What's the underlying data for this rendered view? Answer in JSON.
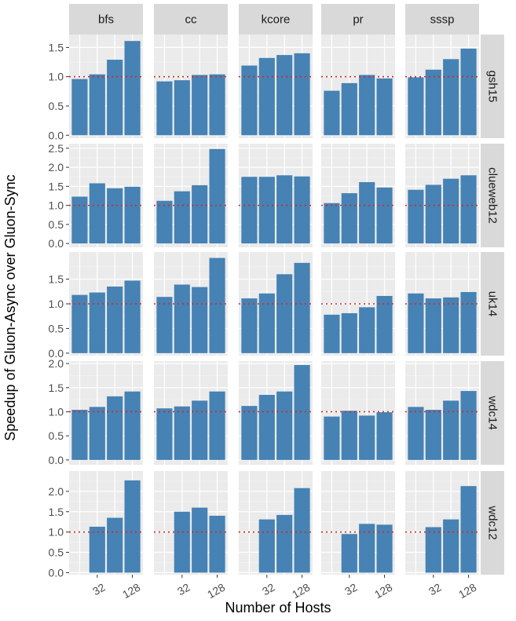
{
  "chart_data": {
    "type": "bar",
    "facet": "grid",
    "xlabel": "Number of Hosts",
    "ylabel": "Speedup of Gluon-Async over Gluon-Sync",
    "x_tick_labels": [
      "32",
      "128"
    ],
    "x_tick_category_indices": [
      1,
      3
    ],
    "hosts": [
      "16",
      "32",
      "64",
      "128"
    ],
    "reference_line": {
      "y": 1.0,
      "style": "dotted",
      "color": "#dd2222"
    },
    "bar_color": "#4682b4",
    "columns": [
      "bfs",
      "cc",
      "kcore",
      "pr",
      "sssp"
    ],
    "rows": [
      {
        "name": "gsh15",
        "ylim": [
          -0.05,
          1.72
        ],
        "y_ticks": [
          0.0,
          0.5,
          1.0,
          1.5
        ],
        "y_tick_labels": [
          "0.0",
          "0.5",
          "1.0",
          "1.5"
        ],
        "values": {
          "bfs": [
            0.96,
            1.04,
            1.29,
            1.61
          ],
          "cc": [
            0.92,
            0.94,
            1.03,
            1.04
          ],
          "kcore": [
            1.19,
            1.32,
            1.37,
            1.4
          ],
          "pr": [
            0.76,
            0.89,
            1.03,
            0.97
          ],
          "sssp": [
            0.99,
            1.12,
            1.3,
            1.48
          ]
        }
      },
      {
        "name": "clueweb12",
        "ylim": [
          -0.1,
          2.62
        ],
        "y_ticks": [
          0.0,
          0.5,
          1.0,
          1.5,
          2.0,
          2.5
        ],
        "y_tick_labels": [
          "0.0",
          "0.5",
          "1.0",
          "1.5",
          "2.0",
          "2.5"
        ],
        "values": {
          "bfs": [
            1.23,
            1.58,
            1.45,
            1.49
          ],
          "cc": [
            1.12,
            1.37,
            1.53,
            2.48
          ],
          "kcore": [
            1.75,
            1.75,
            1.79,
            1.76
          ],
          "pr": [
            1.06,
            1.32,
            1.61,
            1.47
          ],
          "sssp": [
            1.41,
            1.54,
            1.7,
            1.79
          ]
        }
      },
      {
        "name": "uk14",
        "ylim": [
          -0.05,
          2.05
        ],
        "y_ticks": [
          0.0,
          0.5,
          1.0,
          1.5
        ],
        "y_tick_labels": [
          "0.0",
          "0.5",
          "1.0",
          "1.5"
        ],
        "values": {
          "bfs": [
            1.18,
            1.23,
            1.35,
            1.47
          ],
          "cc": [
            1.14,
            1.39,
            1.34,
            1.93
          ],
          "kcore": [
            1.11,
            1.21,
            1.6,
            1.83
          ],
          "pr": [
            0.78,
            0.81,
            0.93,
            1.16
          ],
          "sssp": [
            1.21,
            1.11,
            1.13,
            1.24
          ]
        }
      },
      {
        "name": "wdc14",
        "ylim": [
          -0.1,
          2.05
        ],
        "y_ticks": [
          0.0,
          0.5,
          1.0,
          1.5,
          2.0
        ],
        "y_tick_labels": [
          "0.0",
          "0.5",
          "1.0",
          "1.5",
          "2.0"
        ],
        "values": {
          "bfs": [
            1.04,
            1.1,
            1.32,
            1.42
          ],
          "cc": [
            1.07,
            1.11,
            1.23,
            1.42
          ],
          "kcore": [
            1.12,
            1.35,
            1.42,
            1.97
          ],
          "pr": [
            0.9,
            1.02,
            0.92,
            0.99
          ],
          "sssp": [
            1.1,
            1.04,
            1.23,
            1.43
          ]
        }
      },
      {
        "name": "wdc12",
        "ylim": [
          -0.05,
          2.5
        ],
        "y_ticks": [
          0.0,
          0.5,
          1.0,
          1.5,
          2.0
        ],
        "y_tick_labels": [
          "0.0",
          "0.5",
          "1.0",
          "1.5",
          "2.0"
        ],
        "values": {
          "bfs": [
            null,
            1.13,
            1.35,
            2.27
          ],
          "cc": [
            null,
            1.5,
            1.6,
            1.4
          ],
          "kcore": [
            null,
            1.31,
            1.42,
            2.08
          ],
          "pr": [
            null,
            0.95,
            1.2,
            1.18
          ],
          "sssp": [
            null,
            1.12,
            1.31,
            2.13
          ]
        }
      }
    ]
  }
}
